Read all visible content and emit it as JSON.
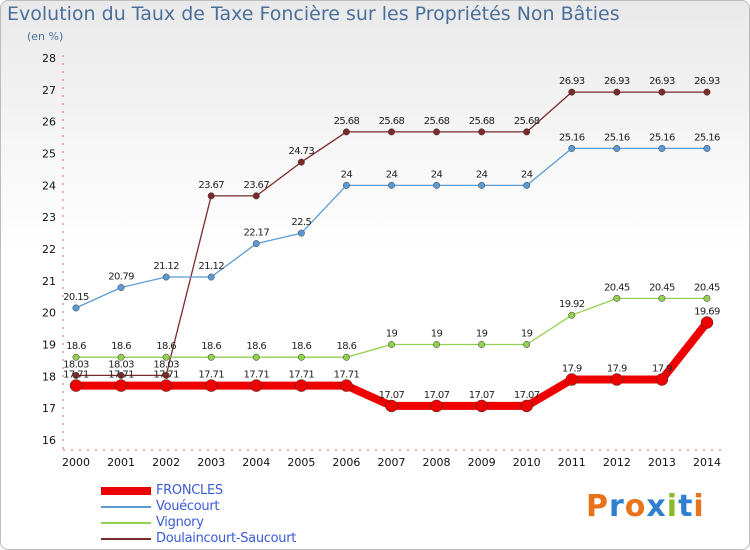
{
  "header": {
    "title": "Evolution du Taux de Taxe Foncière sur les Propriétés Non Bâties",
    "unit": "(en %)"
  },
  "logo": {
    "text": "Proxiti",
    "colors": [
      "#e8731a",
      "#2f7fd0",
      "#e8731a",
      "#2f7fd0",
      "#8abb2a",
      "#2f7fd0",
      "#e8731a"
    ]
  },
  "colors": {
    "FRONCLES": "#ee0000",
    "Vouécourt": "#5b9bd5",
    "Vignory": "#92d050",
    "Doulaincourt-Saucourt": "#7b2a2a"
  },
  "chart_data": {
    "type": "line",
    "x": [
      "2000",
      "2001",
      "2002",
      "2003",
      "2004",
      "2005",
      "2006",
      "2007",
      "2008",
      "2009",
      "2010",
      "2011",
      "2012",
      "2013",
      "2014"
    ],
    "yticks": [
      "16",
      "17",
      "18",
      "19",
      "20",
      "21",
      "22",
      "23",
      "24",
      "25",
      "26",
      "27",
      "28"
    ],
    "ylim": [
      16,
      28
    ],
    "grid": false,
    "legend": "bottom-left",
    "series": [
      {
        "name": "FRONCLES",
        "values": [
          17.71,
          17.71,
          17.71,
          17.71,
          17.71,
          17.71,
          17.71,
          17.07,
          17.07,
          17.07,
          17.07,
          17.9,
          17.9,
          17.9,
          19.69
        ],
        "labels": [
          "17.71",
          "17.71",
          "17.71",
          "17.71",
          "17.71",
          "17.71",
          "17.71",
          "17.07",
          "17.07",
          "17.07",
          "17.07",
          "17.9",
          "17.9",
          "17.9",
          "19.69"
        ]
      },
      {
        "name": "Vouécourt",
        "values": [
          20.15,
          20.79,
          21.12,
          21.12,
          22.17,
          22.5,
          24,
          24,
          24,
          24,
          24,
          25.16,
          25.16,
          25.16,
          25.16
        ],
        "labels": [
          "20.15",
          "20.79",
          "21.12",
          "21.12",
          "22.17",
          "22.5",
          "24",
          "24",
          "24",
          "24",
          "24",
          "25.16",
          "25.16",
          "25.16",
          "25.16"
        ]
      },
      {
        "name": "Vignory",
        "values": [
          18.6,
          18.6,
          18.6,
          18.6,
          18.6,
          18.6,
          18.6,
          19,
          19,
          19,
          19,
          19.92,
          20.45,
          20.45,
          20.45
        ],
        "labels": [
          "18.6",
          "18.6",
          "18.6",
          "18.6",
          "18.6",
          "18.6",
          "18.6",
          "19",
          "19",
          "19",
          "19",
          "19.92",
          "20.45",
          "20.45",
          "20.45"
        ]
      },
      {
        "name": "Doulaincourt-Saucourt",
        "values": [
          18.03,
          18.03,
          18.03,
          23.67,
          23.67,
          24.73,
          25.68,
          25.68,
          25.68,
          25.68,
          25.68,
          26.93,
          26.93,
          26.93,
          26.93
        ],
        "labels": [
          "18.03",
          "18.03",
          "18.03",
          "23.67",
          "23.67",
          "24.73",
          "25.68",
          "25.68",
          "25.68",
          "25.68",
          "25.68",
          "26.93",
          "26.93",
          "26.93",
          "26.93"
        ]
      }
    ]
  }
}
